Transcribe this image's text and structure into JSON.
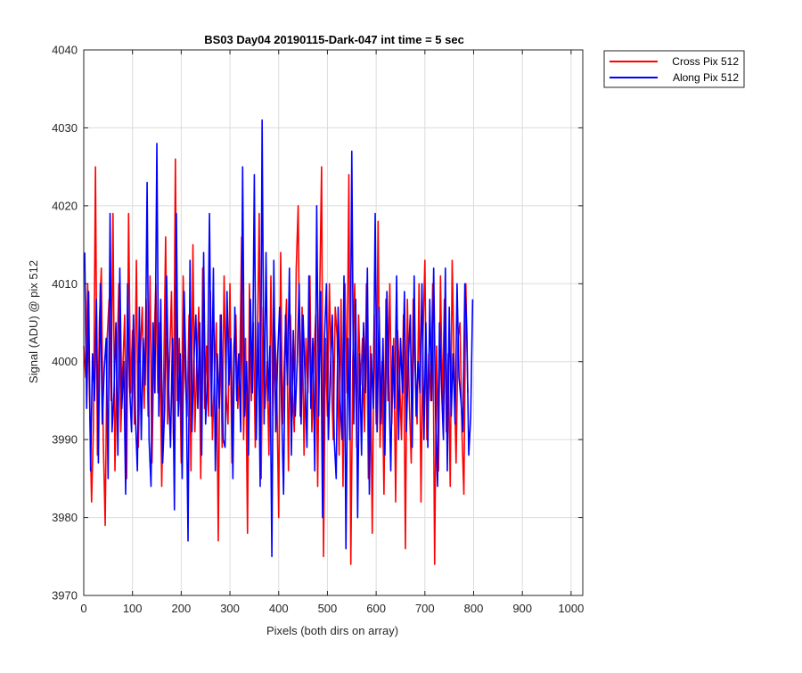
{
  "chart_data": {
    "type": "line",
    "title": "BS03 Day04 20190115-Dark-047 int time = 5 sec",
    "xlabel": "Pixels (both dirs on array)",
    "ylabel": "Signal (ADU) @ pix 512",
    "xlim": [
      0,
      1024
    ],
    "ylim": [
      3970,
      4040
    ],
    "xticks": [
      0,
      100,
      200,
      300,
      400,
      500,
      600,
      700,
      800,
      900,
      1000
    ],
    "yticks": [
      3970,
      3980,
      3990,
      4000,
      4010,
      4020,
      4030,
      4040
    ],
    "grid": true,
    "legend_position": "outside-top-right",
    "series": [
      {
        "name": "Cross Pix 512",
        "color": "#ff0000",
        "x_start": 0,
        "x_step": 4,
        "values": [
          4002,
          3998,
          4010,
          3995,
          3982,
          3992,
          4025,
          3988,
          4005,
          4012,
          3990,
          3979,
          4003,
          4008,
          3995,
          4019,
          3986,
          4000,
          4010,
          3991,
          3999,
          4006,
          3985,
          4019,
          3996,
          4004,
          3992,
          4013,
          3989,
          4001,
          4007,
          3994,
          4008,
          3993,
          4011,
          3987,
          4002,
          4010,
          3996,
          4005,
          3984,
          3998,
          4016,
          3992,
          4000,
          4009,
          3990,
          4026,
          3995,
          4003,
          3987,
          4011,
          3998,
          3993,
          4006,
          3986,
          4015,
          3991,
          4000,
          4007,
          3985,
          4012,
          3994,
          4002,
          3993,
          4009,
          3990,
          3998,
          4005,
          3977,
          4006,
          3989,
          4011,
          3996,
          3992,
          4010,
          3987,
          4002,
          4006,
          3994,
          3999,
          4016,
          3990,
          4003,
          3978,
          4010,
          3995,
          4005,
          3989,
          4001,
          4019,
          3985,
          4007,
          3994,
          4000,
          3988,
          4011,
          3993,
          4004,
          3997,
          3980,
          4014,
          3992,
          4001,
          4008,
          3986,
          4006,
          3997,
          3991,
          4012,
          4020,
          3993,
          4007,
          3988,
          4003,
          3996,
          4011,
          3991,
          4000,
          4006,
          3984,
          4008,
          4025,
          3975,
          4003,
          3993,
          4010,
          3998,
          3990,
          4007,
          4003,
          3988,
          4008,
          3984,
          4010,
          3996,
          4024,
          3974,
          4000,
          4010,
          3989,
          4006,
          3997,
          4003,
          3991,
          4010,
          3985,
          4002,
          3978,
          4006,
          3992,
          4018,
          3989,
          4000,
          3983,
          4008,
          3995,
          4010,
          3992,
          4003,
          3982,
          4004,
          3998,
          3990,
          4006,
          3976,
          4008,
          3995,
          3987,
          4008,
          3999,
          3992,
          4010,
          3982,
          4003,
          4013,
          3990,
          4001,
          3995,
          4010,
          3974,
          4002,
          3986,
          4011,
          3994,
          4008,
          3991,
          4001,
          3984,
          4013,
          3999,
          3987,
          4003,
          4005,
          3991,
          3983,
          4010,
          3996
        ]
      },
      {
        "name": "Along Pix 512",
        "color": "#0000ff",
        "x_start": 2,
        "x_step": 4,
        "values": [
          4014,
          3994,
          4009,
          3986,
          4001,
          3995,
          4008,
          3987,
          4010,
          3992,
          3999,
          4003,
          3985,
          4019,
          3991,
          3996,
          4005,
          3988,
          4012,
          3994,
          4000,
          3983,
          4010,
          3997,
          3991,
          4006,
          3993,
          3986,
          4007,
          3990,
          4003,
          3997,
          4023,
          3990,
          3984,
          4005,
          3996,
          4028,
          3993,
          4008,
          3987,
          3994,
          4011,
          3997,
          3989,
          4003,
          3981,
          4019,
          3993,
          4001,
          3985,
          4009,
          3998,
          3977,
          4013,
          3991,
          4000,
          4006,
          3994,
          4005,
          3988,
          4014,
          3992,
          3998,
          4019,
          3993,
          4012,
          3986,
          4001,
          3994,
          4006,
          3990,
          3989,
          4009,
          3997,
          4003,
          3985,
          4007,
          3995,
          4001,
          3991,
          4025,
          3993,
          4000,
          3988,
          4008,
          3996,
          4024,
          3990,
          4005,
          3984,
          4031,
          3992,
          4014,
          3995,
          4002,
          3975,
          4013,
          3991,
          4001,
          4007,
          3994,
          3983,
          4006,
          3997,
          4012,
          3988,
          4004,
          3993,
          4000,
          4010,
          3992,
          4006,
          3998,
          3989,
          4011,
          3994,
          4003,
          3986,
          4020,
          3993,
          4009,
          3980,
          4003,
          4010,
          3990,
          3999,
          4006,
          3990,
          3985,
          4007,
          3995,
          3990,
          4011,
          3976,
          4003,
          3990,
          4027,
          3992,
          4008,
          3980,
          4001,
          3988,
          4005,
          3996,
          4012,
          3983,
          4001,
          3994,
          4019,
          3991,
          4007,
          3992,
          4003,
          3988,
          4009,
          3998,
          3986,
          4002,
          3994,
          4011,
          3990,
          4003,
          3996,
          4009,
          3991,
          4000,
          4006,
          3989,
          4011,
          3993,
          4000,
          3996,
          4010,
          3990,
          4005,
          3989,
          4008,
          3995,
          4012,
          3993,
          3984,
          4005,
          3997,
          3990,
          4012,
          3986,
          4007,
          3993,
          4001,
          3992,
          4010,
          3998,
          3995,
          3991,
          4010,
          4004,
          3988,
          3993,
          4008
        ]
      }
    ]
  }
}
